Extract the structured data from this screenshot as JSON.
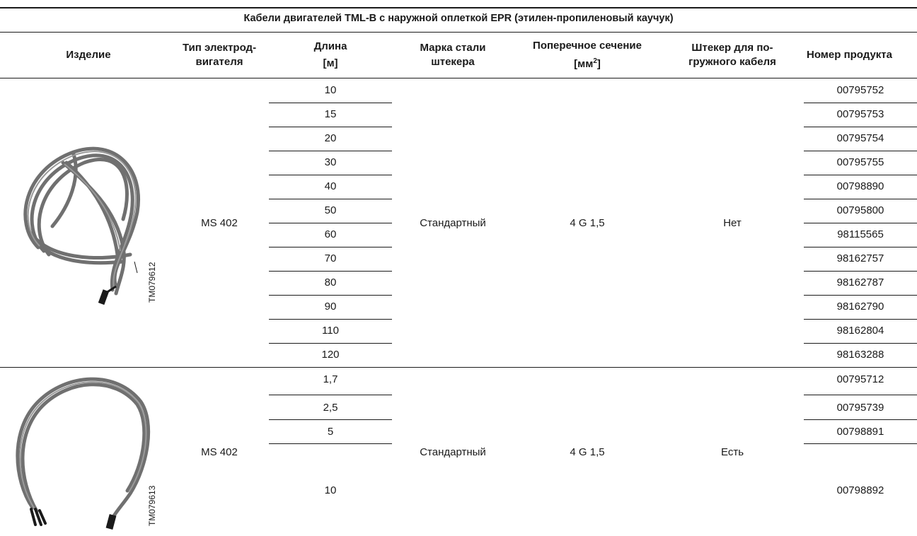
{
  "table": {
    "title": "Кабели двигателей TML-B с наружной оплеткой EPR (этилен-пропиленовый каучук)",
    "headers": {
      "product": "Изделие",
      "motor_line1": "Тип электрод-",
      "motor_line2": "вигателя",
      "length_line1": "Длина",
      "length_line2": "[м]",
      "steel_line1": "Марка стали",
      "steel_line2": "штекера",
      "section_line1": "Поперечное сечение",
      "section_base": "[мм",
      "section_sup": "2",
      "section_end": "]",
      "plug_line1": "Штекер для по-",
      "plug_line2": "гружного кабеля",
      "number": "Номер продукта"
    },
    "groups": [
      {
        "image_code": "TM079612",
        "motor": "MS 402",
        "steel": "Стандартный",
        "section": "4 G 1,5",
        "plug": "Нет",
        "rows": [
          {
            "length": "10",
            "number": "00795752"
          },
          {
            "length": "15",
            "number": "00795753"
          },
          {
            "length": "20",
            "number": "00795754"
          },
          {
            "length": "30",
            "number": "00795755"
          },
          {
            "length": "40",
            "number": "00798890"
          },
          {
            "length": "50",
            "number": "00795800"
          },
          {
            "length": "60",
            "number": "98115565"
          },
          {
            "length": "70",
            "number": "98162757"
          },
          {
            "length": "80",
            "number": "98162787"
          },
          {
            "length": "90",
            "number": "98162790"
          },
          {
            "length": "110",
            "number": "98162804"
          },
          {
            "length": "120",
            "number": "98163288"
          }
        ]
      },
      {
        "image_code": "TM079613",
        "motor": "MS 402",
        "steel": "Стандартный",
        "section": "4 G 1,5",
        "plug": "Есть",
        "rows": [
          {
            "length": "1,7",
            "number": "00795712"
          },
          {
            "length": "2,5",
            "number": "00795739"
          },
          {
            "length": "5",
            "number": "00798891"
          },
          {
            "length": "10",
            "number": "00798892"
          }
        ]
      }
    ]
  }
}
